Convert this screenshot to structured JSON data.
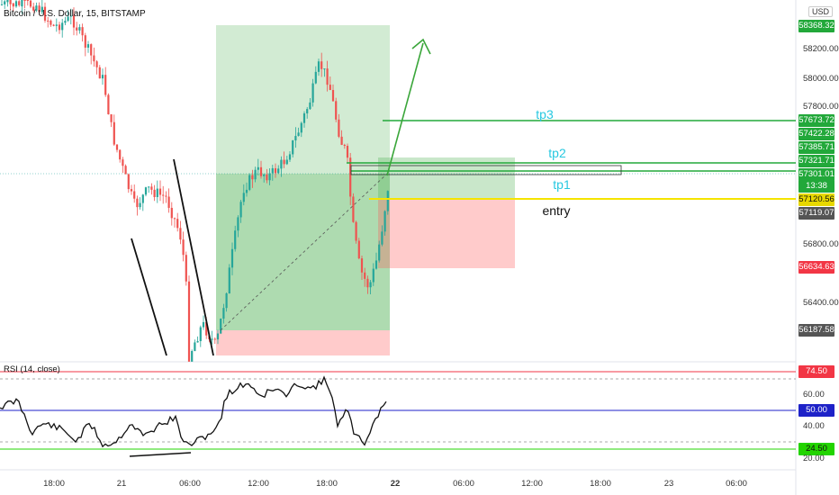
{
  "symbol_title": "Bitcoin / U.S. Dollar, 15, BITSTAMP",
  "currency": "USD",
  "price_axis": [
    "58200.00",
    "58000.00",
    "57800.00",
    "56800.00",
    "56400.00"
  ],
  "price_tags": [
    {
      "text": "58368.32",
      "color": "#22a83a"
    },
    {
      "text": "57673.72",
      "color": "#22a83a"
    },
    {
      "text": "57422.28",
      "color": "#22a83a"
    },
    {
      "text": "57385.71",
      "color": "#22a83a"
    },
    {
      "text": "57321.71",
      "color": "#22a83a"
    },
    {
      "text": "57301.01",
      "color": "#22a83a"
    },
    {
      "text": "13:38",
      "color": "#22a83a"
    },
    {
      "text": "57120.56",
      "color": "#e8d800"
    },
    {
      "text": "57119.07",
      "color": "#555555"
    },
    {
      "text": "56634.63",
      "color": "#f23645"
    },
    {
      "text": "56187.58",
      "color": "#555555"
    }
  ],
  "annotations": {
    "tp3": "tp3",
    "tp2": "tp2",
    "tp1": "tp1",
    "entry": "entry"
  },
  "rsi": {
    "title": "RSI (14, close)",
    "axis": [
      "60.00",
      "40.00",
      "20.00"
    ],
    "tags": [
      {
        "text": "74.50",
        "color": "#f23645"
      },
      {
        "text": "50.00",
        "color": "#1e22c8"
      },
      {
        "text": "24.50",
        "color": "#22d400"
      }
    ]
  },
  "time_axis": [
    "18:00",
    "21",
    "06:00",
    "12:00",
    "18:00",
    "22",
    "06:00",
    "12:00",
    "18:00",
    "23",
    "06:00"
  ],
  "colors": {
    "up": "#26a69a",
    "down": "#ef5350",
    "profit_zone": "#4caf50",
    "loss_zone": "#ff5252"
  },
  "chart_data": {
    "type": "candlestick",
    "symbol": "Bitcoin / U.S. Dollar",
    "interval": "15",
    "exchange": "BITSTAMP",
    "last_price": 57301.01,
    "entry": 57120.56,
    "tp1": 57321.71,
    "tp2": 57422.28,
    "tp3": 57673.72,
    "stop": 56634.63,
    "rsi_levels": {
      "upper": 74.5,
      "middle": 50,
      "lower": 24.5
    }
  }
}
